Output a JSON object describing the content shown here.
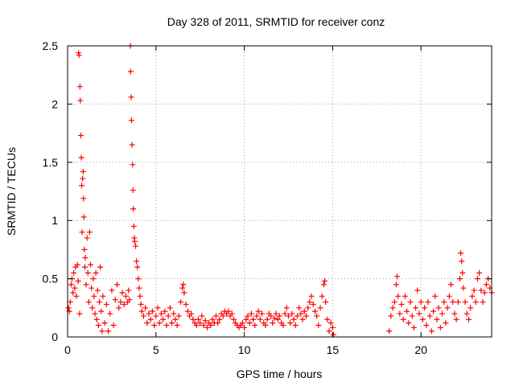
{
  "chart_data": {
    "type": "scatter",
    "title": "Day 328 of 2011, SRMTID for receiver conz",
    "xlabel": "GPS time / hours",
    "ylabel": "SRMTID / TECUs",
    "xlim": [
      0,
      24
    ],
    "ylim": [
      0,
      2.5
    ],
    "xticks": [
      0,
      5,
      10,
      15,
      20
    ],
    "xtick_labels": [
      "0",
      "5",
      "10",
      "15",
      "20"
    ],
    "yticks": [
      0,
      0.5,
      1,
      1.5,
      2,
      2.5
    ],
    "ytick_labels": [
      "0",
      "0.5",
      "1",
      "1.5",
      "2",
      "2.5"
    ],
    "grid": true,
    "marker": "+",
    "series": [
      {
        "name": "SRMTID",
        "color": "#ff0000",
        "points": [
          [
            0.05,
            0.25
          ],
          [
            0.1,
            0.22
          ],
          [
            0.15,
            0.3
          ],
          [
            0.2,
            0.45
          ],
          [
            0.25,
            0.5
          ],
          [
            0.3,
            0.38
          ],
          [
            0.35,
            0.55
          ],
          [
            0.4,
            0.42
          ],
          [
            0.45,
            0.6
          ],
          [
            0.5,
            0.35
          ],
          [
            0.55,
            0.62
          ],
          [
            0.6,
            0.48
          ],
          [
            0.62,
            2.44
          ],
          [
            0.65,
            2.42
          ],
          [
            0.68,
            0.2
          ],
          [
            0.7,
            2.15
          ],
          [
            0.72,
            2.03
          ],
          [
            0.75,
            1.73
          ],
          [
            0.78,
            1.54
          ],
          [
            0.8,
            1.3
          ],
          [
            0.82,
            0.9
          ],
          [
            0.85,
            1.36
          ],
          [
            0.88,
            1.42
          ],
          [
            0.9,
            1.19
          ],
          [
            0.92,
            1.03
          ],
          [
            0.95,
            0.75
          ],
          [
            0.98,
            0.6
          ],
          [
            1.0,
            0.68
          ],
          [
            1.05,
            0.45
          ],
          [
            1.1,
            0.85
          ],
          [
            1.15,
            0.55
          ],
          [
            1.2,
            0.3
          ],
          [
            1.25,
            0.9
          ],
          [
            1.3,
            0.62
          ],
          [
            1.35,
            0.42
          ],
          [
            1.4,
            0.25
          ],
          [
            1.45,
            0.5
          ],
          [
            1.5,
            0.35
          ],
          [
            1.55,
            0.2
          ],
          [
            1.6,
            0.55
          ],
          [
            1.65,
            0.15
          ],
          [
            1.7,
            0.4
          ],
          [
            1.75,
            0.1
          ],
          [
            1.8,
            0.3
          ],
          [
            1.85,
            0.6
          ],
          [
            1.9,
            0.22
          ],
          [
            1.95,
            0.05
          ],
          [
            2.0,
            0.35
          ],
          [
            2.1,
            0.12
          ],
          [
            2.2,
            0.28
          ],
          [
            2.3,
            0.05
          ],
          [
            2.4,
            0.2
          ],
          [
            2.5,
            0.4
          ],
          [
            2.6,
            0.1
          ],
          [
            2.7,
            0.32
          ],
          [
            2.8,
            0.45
          ],
          [
            2.9,
            0.25
          ],
          [
            3.0,
            0.3
          ],
          [
            3.1,
            0.38
          ],
          [
            3.2,
            0.28
          ],
          [
            3.3,
            0.35
          ],
          [
            3.4,
            0.3
          ],
          [
            3.45,
            0.4
          ],
          [
            3.5,
            0.32
          ],
          [
            3.55,
            2.5
          ],
          [
            3.57,
            2.28
          ],
          [
            3.6,
            2.06
          ],
          [
            3.62,
            1.86
          ],
          [
            3.65,
            1.65
          ],
          [
            3.68,
            1.48
          ],
          [
            3.7,
            1.26
          ],
          [
            3.72,
            1.1
          ],
          [
            3.75,
            0.95
          ],
          [
            3.78,
            0.85
          ],
          [
            3.8,
            0.82
          ],
          [
            3.85,
            0.78
          ],
          [
            3.9,
            0.65
          ],
          [
            3.95,
            0.6
          ],
          [
            4.0,
            0.5
          ],
          [
            4.05,
            0.42
          ],
          [
            4.1,
            0.35
          ],
          [
            4.15,
            0.28
          ],
          [
            4.2,
            0.22
          ],
          [
            4.3,
            0.18
          ],
          [
            4.4,
            0.25
          ],
          [
            4.5,
            0.12
          ],
          [
            4.6,
            0.2
          ],
          [
            4.7,
            0.15
          ],
          [
            4.8,
            0.22
          ],
          [
            4.9,
            0.1
          ],
          [
            5.0,
            0.18
          ],
          [
            5.1,
            0.25
          ],
          [
            5.2,
            0.12
          ],
          [
            5.3,
            0.2
          ],
          [
            5.4,
            0.15
          ],
          [
            5.5,
            0.22
          ],
          [
            5.6,
            0.1
          ],
          [
            5.7,
            0.18
          ],
          [
            5.8,
            0.25
          ],
          [
            5.9,
            0.12
          ],
          [
            6.0,
            0.2
          ],
          [
            6.1,
            0.15
          ],
          [
            6.2,
            0.1
          ],
          [
            6.3,
            0.18
          ],
          [
            6.4,
            0.3
          ],
          [
            6.5,
            0.42
          ],
          [
            6.55,
            0.45
          ],
          [
            6.6,
            0.38
          ],
          [
            6.7,
            0.28
          ],
          [
            6.8,
            0.22
          ],
          [
            6.9,
            0.18
          ],
          [
            7.0,
            0.2
          ],
          [
            7.1,
            0.15
          ],
          [
            7.2,
            0.12
          ],
          [
            7.3,
            0.1
          ],
          [
            7.4,
            0.15
          ],
          [
            7.5,
            0.12
          ],
          [
            7.6,
            0.18
          ],
          [
            7.7,
            0.1
          ],
          [
            7.8,
            0.14
          ],
          [
            7.9,
            0.08
          ],
          [
            8.0,
            0.12
          ],
          [
            8.1,
            0.1
          ],
          [
            8.2,
            0.15
          ],
          [
            8.3,
            0.12
          ],
          [
            8.4,
            0.18
          ],
          [
            8.5,
            0.12
          ],
          [
            8.6,
            0.15
          ],
          [
            8.7,
            0.2
          ],
          [
            8.8,
            0.18
          ],
          [
            8.9,
            0.22
          ],
          [
            9.0,
            0.2
          ],
          [
            9.1,
            0.22
          ],
          [
            9.2,
            0.18
          ],
          [
            9.3,
            0.2
          ],
          [
            9.4,
            0.15
          ],
          [
            9.5,
            0.12
          ],
          [
            9.6,
            0.1
          ],
          [
            9.7,
            0.08
          ],
          [
            9.8,
            0.1
          ],
          [
            9.9,
            0.12
          ],
          [
            10.0,
            0.08
          ],
          [
            10.1,
            0.15
          ],
          [
            10.2,
            0.18
          ],
          [
            10.3,
            0.12
          ],
          [
            10.4,
            0.2
          ],
          [
            10.5,
            0.15
          ],
          [
            10.6,
            0.1
          ],
          [
            10.7,
            0.18
          ],
          [
            10.8,
            0.22
          ],
          [
            10.9,
            0.15
          ],
          [
            11.0,
            0.2
          ],
          [
            11.1,
            0.12
          ],
          [
            11.2,
            0.1
          ],
          [
            11.3,
            0.15
          ],
          [
            11.4,
            0.2
          ],
          [
            11.5,
            0.18
          ],
          [
            11.6,
            0.12
          ],
          [
            11.7,
            0.16
          ],
          [
            11.8,
            0.2
          ],
          [
            11.9,
            0.15
          ],
          [
            12.0,
            0.18
          ],
          [
            12.1,
            0.12
          ],
          [
            12.2,
            0.1
          ],
          [
            12.3,
            0.2
          ],
          [
            12.4,
            0.25
          ],
          [
            12.5,
            0.18
          ],
          [
            12.6,
            0.12
          ],
          [
            12.7,
            0.2
          ],
          [
            12.8,
            0.15
          ],
          [
            12.9,
            0.1
          ],
          [
            13.0,
            0.18
          ],
          [
            13.1,
            0.25
          ],
          [
            13.2,
            0.2
          ],
          [
            13.3,
            0.15
          ],
          [
            13.4,
            0.22
          ],
          [
            13.5,
            0.18
          ],
          [
            13.6,
            0.25
          ],
          [
            13.7,
            0.3
          ],
          [
            13.8,
            0.35
          ],
          [
            13.9,
            0.28
          ],
          [
            14.0,
            0.22
          ],
          [
            14.1,
            0.18
          ],
          [
            14.2,
            0.1
          ],
          [
            14.3,
            0.25
          ],
          [
            14.4,
            0.35
          ],
          [
            14.5,
            0.45
          ],
          [
            14.55,
            0.48
          ],
          [
            14.6,
            0.3
          ],
          [
            14.7,
            0.15
          ],
          [
            14.8,
            0.05
          ],
          [
            14.9,
            0.12
          ],
          [
            15.0,
            0.08
          ],
          [
            15.05,
            0.02
          ],
          [
            18.2,
            0.05
          ],
          [
            18.3,
            0.18
          ],
          [
            18.4,
            0.25
          ],
          [
            18.5,
            0.3
          ],
          [
            18.6,
            0.45
          ],
          [
            18.65,
            0.52
          ],
          [
            18.7,
            0.35
          ],
          [
            18.8,
            0.2
          ],
          [
            18.9,
            0.28
          ],
          [
            19.0,
            0.15
          ],
          [
            19.1,
            0.35
          ],
          [
            19.2,
            0.22
          ],
          [
            19.3,
            0.12
          ],
          [
            19.4,
            0.3
          ],
          [
            19.5,
            0.18
          ],
          [
            19.6,
            0.08
          ],
          [
            19.7,
            0.25
          ],
          [
            19.8,
            0.4
          ],
          [
            19.9,
            0.2
          ],
          [
            20.0,
            0.3
          ],
          [
            20.1,
            0.15
          ],
          [
            20.2,
            0.25
          ],
          [
            20.3,
            0.1
          ],
          [
            20.4,
            0.3
          ],
          [
            20.5,
            0.18
          ],
          [
            20.6,
            0.05
          ],
          [
            20.7,
            0.22
          ],
          [
            20.8,
            0.35
          ],
          [
            20.9,
            0.15
          ],
          [
            21.0,
            0.25
          ],
          [
            21.1,
            0.08
          ],
          [
            21.2,
            0.2
          ],
          [
            21.3,
            0.3
          ],
          [
            21.4,
            0.12
          ],
          [
            21.5,
            0.25
          ],
          [
            21.6,
            0.35
          ],
          [
            21.7,
            0.45
          ],
          [
            21.8,
            0.3
          ],
          [
            21.9,
            0.2
          ],
          [
            22.0,
            0.15
          ],
          [
            22.1,
            0.3
          ],
          [
            22.2,
            0.5
          ],
          [
            22.25,
            0.72
          ],
          [
            22.3,
            0.65
          ],
          [
            22.35,
            0.55
          ],
          [
            22.4,
            0.42
          ],
          [
            22.5,
            0.3
          ],
          [
            22.6,
            0.2
          ],
          [
            22.7,
            0.15
          ],
          [
            22.8,
            0.25
          ],
          [
            22.9,
            0.35
          ],
          [
            23.0,
            0.4
          ],
          [
            23.1,
            0.3
          ],
          [
            23.2,
            0.5
          ],
          [
            23.3,
            0.55
          ],
          [
            23.4,
            0.4
          ],
          [
            23.5,
            0.3
          ],
          [
            23.6,
            0.38
          ],
          [
            23.7,
            0.45
          ],
          [
            23.8,
            0.5
          ],
          [
            23.9,
            0.42
          ],
          [
            24.0,
            0.38
          ]
        ]
      }
    ]
  }
}
